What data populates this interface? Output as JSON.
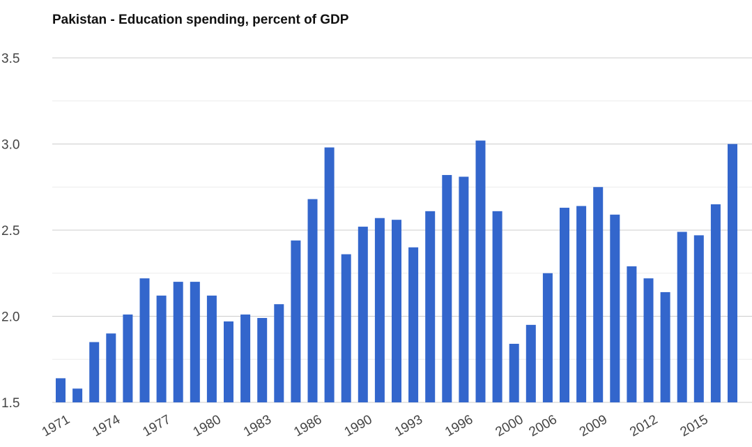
{
  "chart_data": {
    "type": "bar",
    "title": "Pakistan - Education spending, percent of GDP",
    "xlabel": "",
    "ylabel": "",
    "ylim": [
      1.5,
      3.5
    ],
    "yticks": [
      "3.5",
      "3.0",
      "2.5",
      "2.0",
      "1.5"
    ],
    "grid": true,
    "legend": "none",
    "bar_color": "#3366cc",
    "categories": [
      "1971",
      "1972",
      "1973",
      "1974",
      "1975",
      "1976",
      "1977",
      "1978",
      "1979",
      "1980",
      "1981",
      "1982",
      "1983",
      "1984",
      "1985",
      "1986",
      "1987",
      "1989",
      "1990",
      "1991",
      "1992",
      "1993",
      "1994",
      "1995",
      "1996",
      "1997",
      "1999",
      "2000",
      "2005",
      "2006",
      "2007",
      "2008",
      "2009",
      "2010",
      "2011",
      "2012",
      "2013",
      "2014",
      "2015",
      "2016",
      "2017"
    ],
    "xtick_labels": [
      "1971",
      "1974",
      "1977",
      "1980",
      "1983",
      "1986",
      "1990",
      "1993",
      "1996",
      "2000",
      "2006",
      "2009",
      "2012",
      "2015"
    ],
    "values": [
      1.64,
      1.58,
      1.85,
      1.9,
      2.01,
      2.22,
      2.12,
      2.2,
      2.2,
      2.12,
      1.97,
      2.01,
      1.99,
      2.07,
      2.44,
      2.68,
      2.98,
      2.36,
      2.52,
      2.57,
      2.56,
      2.4,
      2.61,
      2.82,
      2.81,
      3.02,
      2.61,
      1.84,
      1.95,
      2.25,
      2.63,
      2.64,
      2.75,
      2.59,
      2.29,
      2.22,
      2.14,
      2.49,
      2.47,
      2.65,
      3.0
    ]
  }
}
